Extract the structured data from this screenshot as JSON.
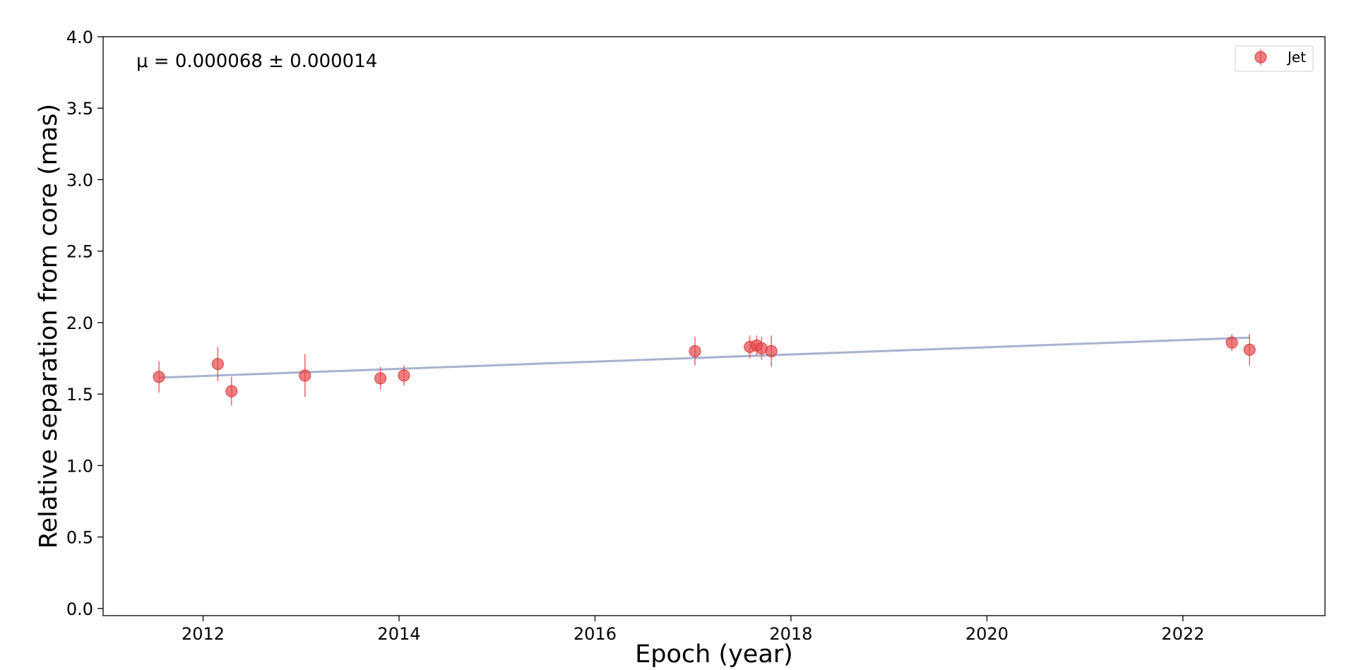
{
  "chart_data": {
    "type": "scatter",
    "xlabel": "Epoch (year)",
    "ylabel": "Relative separation from core (mas)",
    "xlim": [
      2010.98,
      2023.45
    ],
    "ylim": [
      -0.05,
      4.0
    ],
    "xticks": [
      2012,
      2014,
      2016,
      2018,
      2020,
      2022
    ],
    "yticks": [
      0.0,
      0.5,
      1.0,
      1.5,
      2.0,
      2.5,
      3.0,
      3.5,
      4.0
    ],
    "xtick_labels": [
      "2012",
      "2014",
      "2016",
      "2018",
      "2020",
      "2022"
    ],
    "ytick_labels": [
      "0.0",
      "0.5",
      "1.0",
      "1.5",
      "2.0",
      "2.5",
      "3.0",
      "3.5",
      "4.0"
    ],
    "grid": false,
    "annotation": "μ = 0.000068 ± 0.000014",
    "legend": {
      "position": "top-right",
      "entries": [
        "Jet"
      ]
    },
    "colors": {
      "points": "#e8474a",
      "fit_line": "#a8b2d0"
    },
    "series": [
      {
        "name": "Jet",
        "points": [
          {
            "x": 2011.55,
            "y": 1.62,
            "err": 0.11
          },
          {
            "x": 2012.15,
            "y": 1.71,
            "err": 0.12
          },
          {
            "x": 2012.29,
            "y": 1.52,
            "err": 0.1
          },
          {
            "x": 2013.04,
            "y": 1.63,
            "err": 0.15
          },
          {
            "x": 2013.81,
            "y": 1.61,
            "err": 0.08
          },
          {
            "x": 2014.05,
            "y": 1.63,
            "err": 0.07
          },
          {
            "x": 2017.02,
            "y": 1.8,
            "err": 0.1
          },
          {
            "x": 2017.58,
            "y": 1.83,
            "err": 0.08
          },
          {
            "x": 2017.65,
            "y": 1.84,
            "err": 0.07
          },
          {
            "x": 2017.7,
            "y": 1.82,
            "err": 0.08
          },
          {
            "x": 2017.8,
            "y": 1.8,
            "err": 0.11
          },
          {
            "x": 2022.5,
            "y": 1.86,
            "err": 0.06
          },
          {
            "x": 2022.68,
            "y": 1.81,
            "err": 0.11
          }
        ]
      }
    ],
    "fit": {
      "x": [
        2011.55,
        2022.68
      ],
      "y": [
        1.615,
        1.895
      ]
    }
  }
}
